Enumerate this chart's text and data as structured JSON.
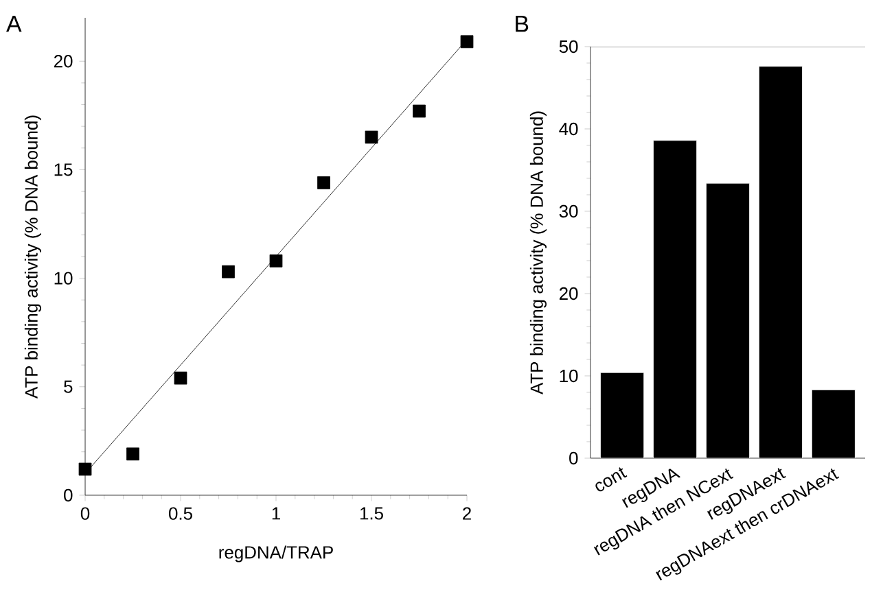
{
  "chart_data": [
    {
      "type": "scatter",
      "title": "A",
      "xlabel": "regDNA/TRAP",
      "ylabel": "ATP binding activity (% DNA bound)",
      "xlim": [
        0,
        2
      ],
      "ylim": [
        0,
        22
      ],
      "xticks": [
        0,
        0.5,
        1,
        1.5,
        2
      ],
      "yticks": [
        0,
        5,
        10,
        15,
        20
      ],
      "series": [
        {
          "type": "scatter",
          "color": "#000000",
          "marker": "square",
          "x": [
            0,
            0.25,
            0.5,
            0.75,
            1,
            1.25,
            1.5,
            1.75,
            2
          ],
          "values": [
            1.2,
            1.9,
            5.4,
            10.3,
            10.8,
            14.4,
            16.5,
            17.7,
            20.9
          ]
        },
        {
          "type": "line",
          "color": "#000000",
          "x": [
            0,
            2
          ],
          "values": [
            1,
            21
          ]
        }
      ]
    },
    {
      "type": "bar",
      "title": "B",
      "ylabel": "ATP binding activity (% DNA bound)",
      "categories": [
        "cont",
        "regDNA",
        "regDNA then NCext",
        "regDNAext",
        "regDNAext then crDNAext"
      ],
      "values": [
        10.4,
        38.6,
        33.4,
        47.6,
        8.3
      ],
      "color": "#000000",
      "ylim": [
        0,
        50
      ],
      "yticks": [
        0,
        10,
        20,
        30,
        40,
        50
      ]
    }
  ]
}
